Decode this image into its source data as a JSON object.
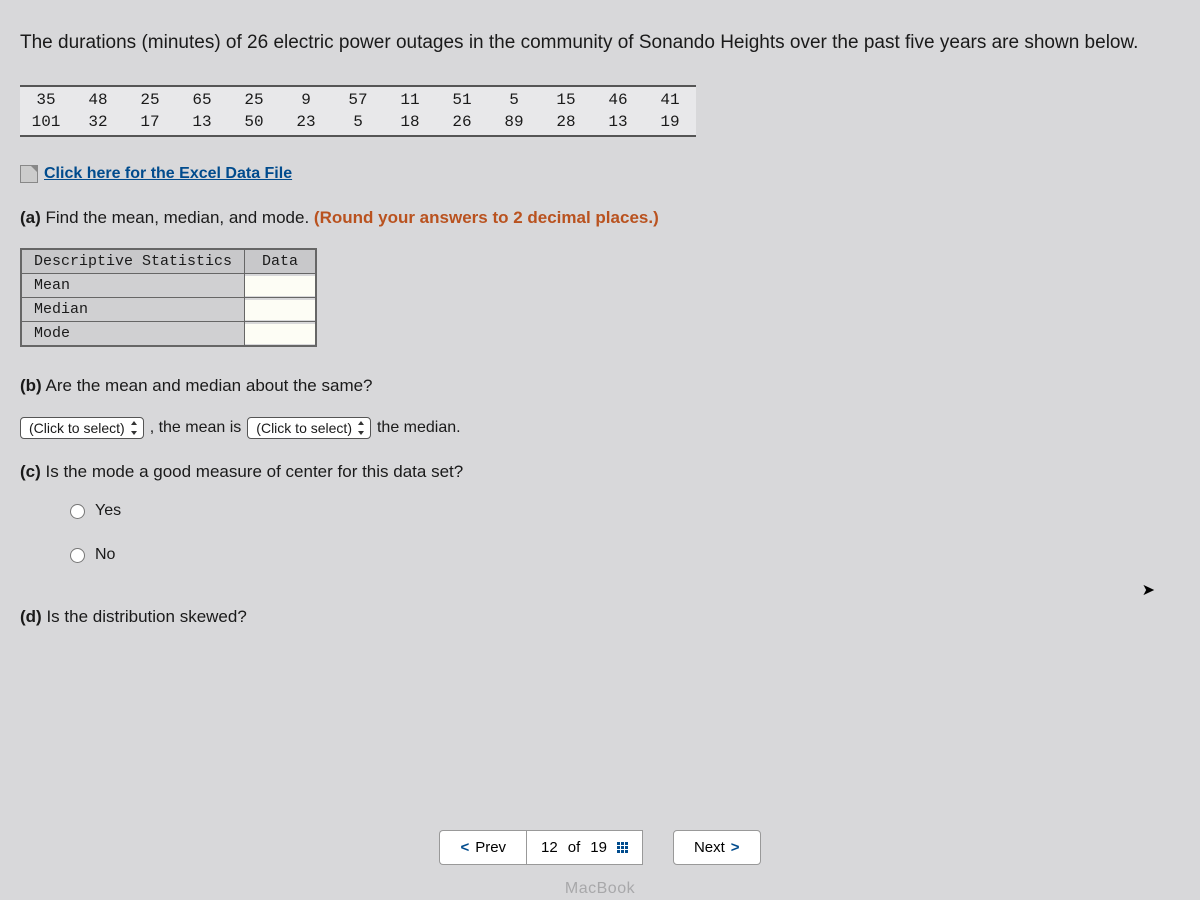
{
  "intro": "The durations (minutes) of 26 electric power outages in the community of Sonando Heights over the past five years are shown below.",
  "data_table": {
    "rows": [
      [
        "35",
        "48",
        "25",
        "65",
        "25",
        "9",
        "57",
        "11",
        "51",
        "5",
        "15",
        "46",
        "41"
      ],
      [
        "101",
        "32",
        "17",
        "13",
        "50",
        "23",
        "5",
        "18",
        "26",
        "89",
        "28",
        "13",
        "19"
      ]
    ]
  },
  "excel_link": "Click here for the Excel Data File",
  "part_a": {
    "label": "(a)",
    "text": "Find the mean, median, and mode.",
    "hint": "(Round your answers to 2 decimal places.)"
  },
  "stats_table": {
    "header_left": "Descriptive Statistics",
    "header_right": "Data",
    "rows": [
      "Mean",
      "Median",
      "Mode"
    ]
  },
  "part_b": {
    "label": "(b)",
    "text": "Are the mean and median about the same?"
  },
  "inline": {
    "select1": "(Click to select)",
    "mid1": ", the mean is",
    "select2": "(Click to select)",
    "mid2": "the median."
  },
  "part_c": {
    "label": "(c)",
    "text": "Is the mode a good measure of center for this data set?"
  },
  "radios": {
    "yes": "Yes",
    "no": "No"
  },
  "part_d": {
    "label": "(d)",
    "text": "Is the distribution skewed?"
  },
  "nav": {
    "prev": "Prev",
    "current": "12",
    "of": "of",
    "total": "19",
    "next": "Next"
  },
  "device": "MacBook"
}
